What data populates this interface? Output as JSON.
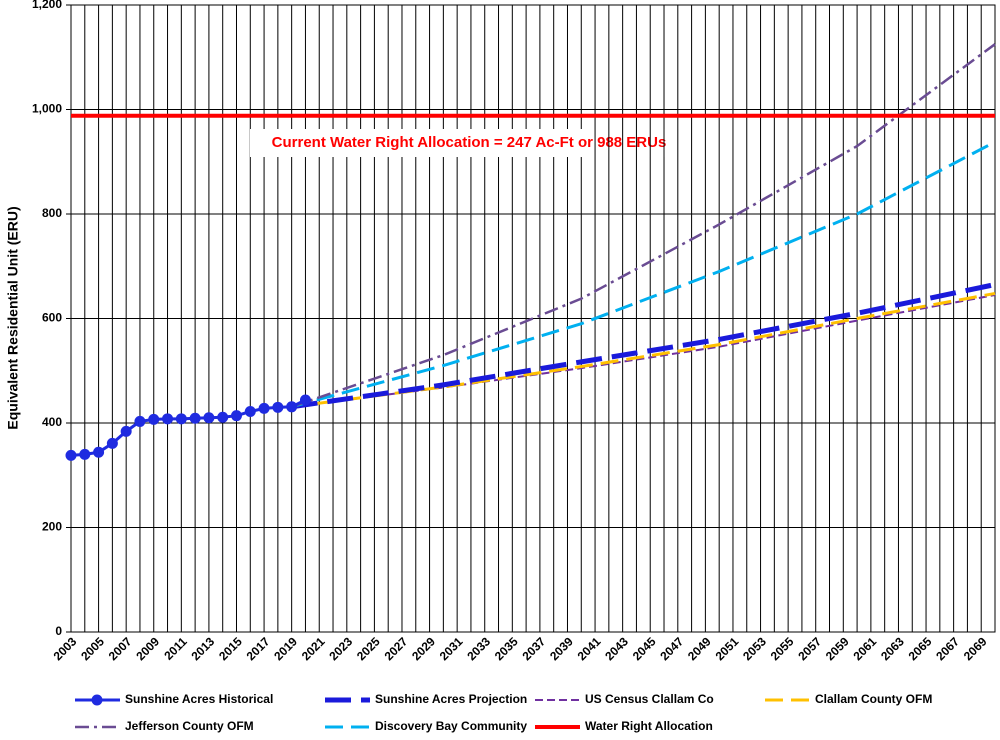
{
  "chart_data": {
    "type": "line",
    "y_label": "Equivalent Residential Unit (ERU)",
    "annotation": "Current Water Right Allocation = 247 Ac-Ft or 988 ERUs",
    "xlim": [
      2003,
      2070
    ],
    "xticks": [
      2003,
      2005,
      2007,
      2009,
      2011,
      2013,
      2015,
      2017,
      2019,
      2021,
      2023,
      2025,
      2027,
      2029,
      2031,
      2033,
      2035,
      2037,
      2039,
      2041,
      2043,
      2045,
      2047,
      2049,
      2051,
      2053,
      2055,
      2057,
      2059,
      2061,
      2063,
      2065,
      2067,
      2069
    ],
    "xminor": [
      2004,
      2006,
      2008,
      2010,
      2012,
      2014,
      2016,
      2018,
      2020,
      2022,
      2024,
      2026,
      2028,
      2030,
      2032,
      2034,
      2036,
      2038,
      2040,
      2042,
      2044,
      2046,
      2048,
      2050,
      2052,
      2054,
      2056,
      2058,
      2060,
      2062,
      2064,
      2066,
      2068,
      2070
    ],
    "ylim": [
      0,
      1200
    ],
    "yticks": [
      0,
      200,
      400,
      600,
      800,
      {
        "value": 1000,
        "label": "1,000"
      },
      {
        "value": 1200,
        "label": "1,200"
      }
    ],
    "grid": true,
    "series": [
      {
        "name": "Sunshine Acres Historical",
        "color": "#1f2be0",
        "style": "solid-markers",
        "x": [
          2003,
          2004,
          2005,
          2006,
          2007,
          2008,
          2009,
          2010,
          2011,
          2012,
          2013,
          2014,
          2015,
          2016,
          2017,
          2018,
          2019,
          2020
        ],
        "values": [
          338,
          340,
          344,
          361,
          384,
          403,
          407,
          408,
          408,
          409,
          410,
          411,
          414,
          422,
          428,
          430,
          431,
          444
        ]
      },
      {
        "name": "Sunshine Acres Projection",
        "color": "#1a1adb",
        "style": "long-dash-thick",
        "x": [
          2019,
          2030,
          2040,
          2050,
          2060,
          2070
        ],
        "values": [
          431,
          473,
          517,
          560,
          610,
          665
        ]
      },
      {
        "name": "US Census Clallam Co",
        "color": "#7030a0",
        "style": "dash",
        "x": [
          2019,
          2030,
          2040,
          2050,
          2060,
          2070
        ],
        "values": [
          431,
          468,
          505,
          546,
          596,
          645
        ]
      },
      {
        "name": "Clallam County OFM",
        "color": "#ffc000",
        "style": "long-dash",
        "x": [
          2019,
          2030,
          2040,
          2050,
          2060,
          2070
        ],
        "values": [
          431,
          469,
          508,
          550,
          600,
          648
        ]
      },
      {
        "name": "Jefferson County OFM",
        "color": "#6a4c93",
        "style": "dash-dot",
        "x": [
          2019,
          2030,
          2040,
          2050,
          2060,
          2070
        ],
        "values": [
          431,
          530,
          638,
          780,
          930,
          1125
        ]
      },
      {
        "name": "Discovery Bay Community",
        "color": "#00b0f0",
        "style": "long-dash",
        "x": [
          2019,
          2030,
          2040,
          2050,
          2060,
          2070
        ],
        "values": [
          431,
          510,
          590,
          690,
          800,
          938
        ]
      },
      {
        "name": "Water Right Allocation",
        "color": "#ff0000",
        "style": "solid-thick",
        "x": [
          2003,
          2070
        ],
        "values": [
          988,
          988
        ]
      }
    ]
  }
}
